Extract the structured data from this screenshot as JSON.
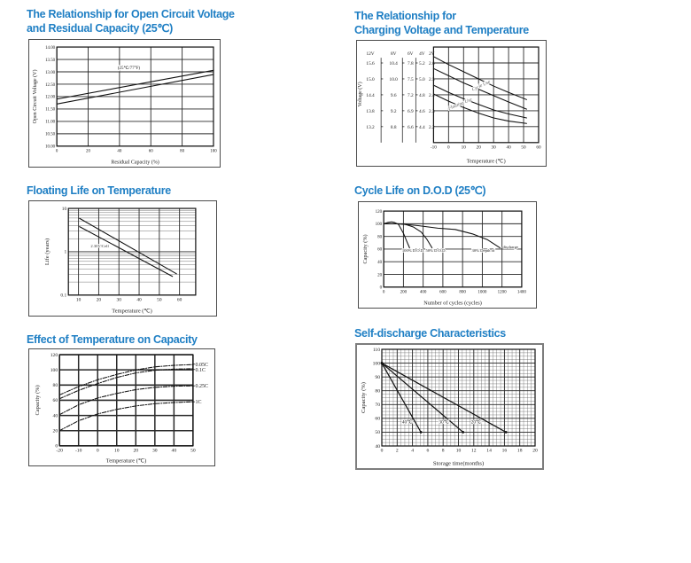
{
  "page": {
    "background": "#ffffff",
    "title_color": "#1f7fc4"
  },
  "charts": [
    {
      "id": "ocv",
      "title_lines": [
        "The Relationship for Open Circuit Voltage",
        "and Residual Capacity (25℃)"
      ]
    },
    {
      "id": "charging",
      "title_lines": [
        "The Relationship for",
        "Charging Voltage and Temperature"
      ]
    },
    {
      "id": "floating",
      "title_lines": [
        "Floating Life on Temperature"
      ]
    },
    {
      "id": "cycle",
      "title_lines": [
        "Cycle Life on D.O.D (25℃)"
      ]
    },
    {
      "id": "tempcap",
      "title_lines": [
        "Effect of Temperature on Capacity"
      ]
    },
    {
      "id": "selfdis",
      "title_lines": [
        "Self-discharge Characteristics"
      ]
    }
  ],
  "chart_data": [
    {
      "id": "ocv",
      "type": "line",
      "xlabel": "Residual Capacity (%)",
      "ylabel": "Open Circuit Voltage (V)",
      "xlim": [
        0,
        100
      ],
      "ylim": [
        10,
        14
      ],
      "xticks": [
        0,
        20,
        40,
        60,
        80,
        100
      ],
      "xtick_labels": [
        "0",
        "20",
        "40",
        "60",
        "80",
        "100"
      ],
      "yticks": [
        10,
        10.5,
        11,
        11.5,
        12,
        12.5,
        13,
        13.5,
        14
      ],
      "ytick_labels": [
        "10.00",
        "10.50",
        "11.00",
        "11.50",
        "12.00",
        "12.50",
        "13.00",
        "13.50",
        "14.00"
      ],
      "series": [
        {
          "name": "upper",
          "x": [
            0,
            100
          ],
          "y": [
            11.9,
            13.06
          ]
        },
        {
          "name": "lower",
          "x": [
            0,
            100
          ],
          "y": [
            11.7,
            12.89
          ]
        }
      ],
      "annotations": [
        {
          "x": 46,
          "y": 13.1,
          "text": "(25℃/77°F)",
          "size": 5
        }
      ]
    },
    {
      "id": "charging",
      "type": "line",
      "xlabel": "Temperature (℃)",
      "xlim": [
        -10,
        60
      ],
      "ylim": [
        2.1,
        2.7
      ],
      "xticks": [
        -10,
        0,
        10,
        20,
        30,
        40,
        50,
        60
      ],
      "xtick_labels": [
        "-10",
        "0",
        "10",
        "20",
        "30",
        "40",
        "50",
        "60"
      ],
      "ygrid": [
        2.2,
        2.3,
        2.4,
        2.5,
        2.6
      ],
      "scales": {
        "axis_label": "Voltage (V)",
        "row_y": [
          2.6,
          2.5,
          2.4,
          2.3,
          2.2
        ],
        "columns": [
          {
            "header": "12V",
            "values": [
              "15.6",
              "15.0",
              "14.4",
              "13.8",
              "13.2"
            ]
          },
          {
            "header": "8V",
            "values": [
              "10.4",
              "10.0",
              "9.6",
              "9.2",
              "8.8"
            ]
          },
          {
            "header": "6V",
            "values": [
              "7.8",
              "7.5",
              "7.2",
              "6.9",
              "6.6"
            ]
          },
          {
            "header": "4V",
            "values": [
              "5.2",
              "5.0",
              "4.8",
              "4.6",
              "4.4"
            ]
          },
          {
            "header": "2V",
            "values": [
              "2.6",
              "2.5",
              "2.4",
              "2.3",
              "2.2"
            ]
          }
        ]
      },
      "series": [
        {
          "name": "cycle-upper",
          "x": [
            -10,
            0,
            10,
            20,
            30,
            40,
            52
          ],
          "y": [
            2.64,
            2.59,
            2.545,
            2.5,
            2.455,
            2.415,
            2.37
          ]
        },
        {
          "name": "cycle-lower",
          "x": [
            -10,
            0,
            10,
            20,
            30,
            40,
            52
          ],
          "y": [
            2.565,
            2.52,
            2.475,
            2.435,
            2.395,
            2.355,
            2.31
          ]
        },
        {
          "name": "floating-upper",
          "x": [
            -10,
            0,
            10,
            20,
            30,
            40,
            52
          ],
          "y": [
            2.46,
            2.415,
            2.375,
            2.34,
            2.305,
            2.28,
            2.255
          ]
        },
        {
          "name": "floating-lower",
          "x": [
            -10,
            0,
            10,
            20,
            30,
            40,
            52
          ],
          "y": [
            2.405,
            2.36,
            2.32,
            2.285,
            2.255,
            2.235,
            2.22
          ]
        }
      ],
      "annotations": [
        {
          "x": 22,
          "y": 2.45,
          "text": "Cycle Use",
          "rotate": -25,
          "italic": true,
          "color": "#5a5a5a",
          "size": 5.4
        },
        {
          "x": 8,
          "y": 2.335,
          "text": "Floating Use",
          "rotate": -22,
          "italic": true,
          "color": "#5a5a5a",
          "size": 5.4
        }
      ]
    },
    {
      "id": "floating",
      "type": "line",
      "xlabel": "Temperature (℃)",
      "ylabel": "Life (years)",
      "yscale": "log",
      "log_minor": true,
      "xlim": [
        5,
        68
      ],
      "ylim": [
        0.1,
        10
      ],
      "xticks": [
        10,
        20,
        30,
        40,
        50,
        60
      ],
      "xtick_labels": [
        "10",
        "20",
        "30",
        "40",
        "50",
        "60"
      ],
      "yticks": [
        0.1,
        1,
        10
      ],
      "ytick_labels": [
        "0.1",
        "1",
        "10"
      ],
      "series": [
        {
          "name": "upper",
          "x": [
            10.5,
            58.5
          ],
          "y": [
            5.9,
            0.31
          ]
        },
        {
          "name": "lower",
          "x": [
            10.5,
            56.5
          ],
          "y": [
            3.8,
            0.27
          ]
        }
      ],
      "annotations": [
        {
          "x": 20.5,
          "y": 1.25,
          "text": "2.30V/Cell",
          "size": 4.6,
          "color": "#333333"
        }
      ]
    },
    {
      "id": "cycle",
      "type": "line",
      "xlabel": "Number of cycles (cycles)",
      "ylabel": "Capacity (%)",
      "xlim": [
        0,
        1400
      ],
      "ylim": [
        0,
        120
      ],
      "xticks": [
        0,
        200,
        400,
        600,
        800,
        1000,
        1200,
        1400
      ],
      "xtick_labels": [
        "0",
        "200",
        "400",
        "600",
        "800",
        "1000",
        "1200",
        "1400"
      ],
      "yticks": [
        0,
        20,
        40,
        60,
        80,
        100,
        120
      ],
      "ytick_labels": [
        "0",
        "20",
        "40",
        "60",
        "80",
        "100",
        "120"
      ],
      "series": [
        {
          "name": "dod-100",
          "x": [
            0,
            40,
            80,
            110,
            150,
            200,
            240,
            262
          ],
          "y": [
            100,
            102,
            103,
            102,
            99,
            85,
            70,
            62
          ]
        },
        {
          "name": "dod-50",
          "x": [
            0,
            120,
            220,
            300,
            380,
            440,
            490
          ],
          "y": [
            100,
            100,
            99,
            95,
            87,
            75,
            62
          ]
        },
        {
          "name": "dod-30",
          "x": [
            0,
            150,
            350,
            550,
            725,
            900,
            1050,
            1180
          ],
          "y": [
            100,
            100,
            97,
            93,
            91,
            84,
            75,
            62
          ]
        }
      ],
      "annotations": [
        {
          "x": 300,
          "y": 56,
          "text": "100% D.O.D.",
          "size": 4.6
        },
        {
          "x": 530,
          "y": 56,
          "text": "50% D.O.D.",
          "size": 4.6
        },
        {
          "x": 1010,
          "y": 56,
          "text": "30% Depth of",
          "size": 4.6
        },
        {
          "x": 1285,
          "y": 61,
          "text": "discharge",
          "size": 4.6
        }
      ]
    },
    {
      "id": "tempcap",
      "type": "line",
      "xlabel": "Temperature (℃)",
      "ylabel": "Capacity (%)",
      "xlim": [
        -20,
        50
      ],
      "ylim": [
        0,
        120
      ],
      "xticks": [
        -20,
        -10,
        0,
        10,
        20,
        30,
        40,
        50
      ],
      "xtick_labels": [
        "-20",
        "-10",
        "0",
        "10",
        "20",
        "30",
        "40",
        "50"
      ],
      "yticks": [
        0,
        20,
        40,
        60,
        80,
        100,
        120
      ],
      "ytick_labels": [
        "0",
        "20",
        "40",
        "60",
        "80",
        "100",
        "120"
      ],
      "series": [
        {
          "name": "0.05C",
          "dash": "4.5 1.6 1 1.6",
          "x": [
            -20,
            -10,
            0,
            10,
            20,
            30,
            40,
            50
          ],
          "y": [
            67,
            78,
            87,
            94,
            100,
            104,
            106,
            107
          ]
        },
        {
          "name": "0.1C",
          "dash": "4.5 1.6 1 1.6",
          "x": [
            -20,
            -10,
            0,
            10,
            20,
            30,
            40,
            50
          ],
          "y": [
            62,
            73,
            82,
            90,
            96,
            99.5,
            101,
            101.5
          ]
        },
        {
          "name": "0.25C",
          "dash": "4.5 1.6 1 1.6",
          "x": [
            -20,
            -10,
            0,
            10,
            20,
            30,
            40,
            50
          ],
          "y": [
            41,
            54,
            63,
            69,
            74,
            77,
            78.5,
            79
          ]
        },
        {
          "name": "1C",
          "dash": "4.5 1.6 1 1.6",
          "x": [
            -20,
            -10,
            0,
            10,
            20,
            30,
            40,
            50
          ],
          "y": [
            20,
            33,
            42,
            48,
            52.5,
            55.5,
            57,
            58
          ]
        }
      ],
      "right_labels": [
        {
          "y": 107.5,
          "text": "0.05C"
        },
        {
          "y": 100.5,
          "text": "0.1C"
        },
        {
          "y": 79,
          "text": "0.25C"
        },
        {
          "y": 58,
          "text": "1C"
        }
      ]
    },
    {
      "id": "selfdis",
      "type": "line",
      "xlabel": "Storage time(months)",
      "ylabel": "Capacity (%)",
      "xlim": [
        0,
        20
      ],
      "ylim": [
        40,
        110
      ],
      "minor": {
        "x": 0.5,
        "y": 2.5
      },
      "xticks": [
        0,
        2,
        4,
        6,
        8,
        10,
        12,
        14,
        16,
        18,
        20
      ],
      "xtick_labels": [
        "0",
        "2",
        "4",
        "6",
        "8",
        "10",
        "12",
        "14",
        "16",
        "18",
        "20"
      ],
      "yticks": [
        40,
        50,
        60,
        70,
        80,
        90,
        100,
        110
      ],
      "ytick_labels": [
        "40",
        "50",
        "60",
        "70",
        "80",
        "90",
        "100",
        "110"
      ],
      "series": [
        {
          "name": "40C",
          "markers": true,
          "width": 1.2,
          "x": [
            0,
            5.1
          ],
          "y": [
            100,
            50
          ]
        },
        {
          "name": "30C",
          "markers": true,
          "width": 1.2,
          "x": [
            0,
            10.6
          ],
          "y": [
            100,
            50
          ]
        },
        {
          "name": "20C",
          "markers": true,
          "width": 1.2,
          "x": [
            0,
            16.2
          ],
          "y": [
            100,
            50
          ]
        }
      ],
      "annotations": [
        {
          "x": 3.3,
          "y": 56.5,
          "text": "40℃",
          "size": 5.4
        },
        {
          "x": 8.1,
          "y": 56.5,
          "text": "30℃",
          "size": 5.4
        },
        {
          "x": 12.3,
          "y": 56.5,
          "text": "20℃",
          "size": 5.4
        }
      ]
    }
  ]
}
